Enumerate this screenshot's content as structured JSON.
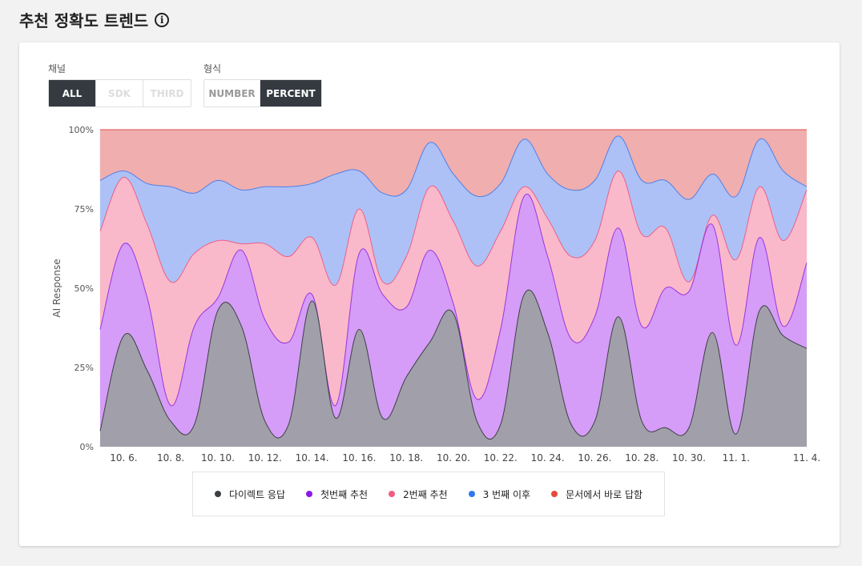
{
  "header": {
    "title": "추천 정확도 트렌드",
    "info_icon": "info-icon",
    "info_glyph": "i"
  },
  "filters": {
    "channel": {
      "label": "채널",
      "options": [
        "ALL",
        "SDK",
        "THIRD"
      ],
      "selected": "ALL"
    },
    "format": {
      "label": "형식",
      "options": [
        "NUMBER",
        "PERCENT"
      ],
      "selected": "PERCENT"
    }
  },
  "chart_data": {
    "type": "area",
    "stacked": true,
    "percent": true,
    "ylabel": "AI Response",
    "ylim": [
      0,
      100
    ],
    "yticks": [
      "0%",
      "25%",
      "50%",
      "75%",
      "100%"
    ],
    "x": [
      "10. 5.",
      "10. 6.",
      "10. 7.",
      "10. 8.",
      "10. 9.",
      "10. 10.",
      "10. 11.",
      "10. 12.",
      "10. 13.",
      "10. 14.",
      "10. 15.",
      "10. 16.",
      "10. 17.",
      "10. 18.",
      "10. 19.",
      "10. 20.",
      "10. 21.",
      "10. 22.",
      "10. 23.",
      "10. 24.",
      "10. 25.",
      "10. 26.",
      "10. 27.",
      "10. 28.",
      "10. 29.",
      "10. 30.",
      "10. 31.",
      "11. 1.",
      "11. 2.",
      "11. 3.",
      "11. 4."
    ],
    "xtick_labels": [
      "10. 6.",
      "10. 8.",
      "10. 10.",
      "10. 12.",
      "10. 14.",
      "10. 16.",
      "10. 18.",
      "10. 20.",
      "10. 22.",
      "10. 24.",
      "10. 26.",
      "10. 28.",
      "10. 30.",
      "11. 1.",
      "11. 4."
    ],
    "grid": true,
    "legend_position": "bottom",
    "series": [
      {
        "name": "다이렉트 응답",
        "color": "#9ea0a5",
        "line": "#3c3f44",
        "cumulative": [
          5,
          35,
          24,
          8,
          7,
          43,
          38,
          8,
          7,
          46,
          9,
          37,
          9,
          22,
          33,
          42,
          8,
          7,
          48,
          36,
          7,
          8,
          41,
          8,
          6,
          6,
          36,
          4,
          43,
          35,
          31
        ]
      },
      {
        "name": "첫번째 추천",
        "color": "#d39bf9",
        "line": "#9b33e0",
        "cumulative": [
          37,
          64,
          47,
          13,
          38,
          47,
          62,
          40,
          33,
          48,
          13,
          61,
          48,
          44,
          62,
          45,
          15,
          37,
          79,
          60,
          34,
          41,
          69,
          38,
          50,
          49,
          70,
          32,
          66,
          38,
          58
        ]
      },
      {
        "name": "2번째 추천",
        "color": "#fdb8c8",
        "line": "#ec5f86",
        "cumulative": [
          68,
          85,
          70,
          52,
          61,
          65,
          64,
          64,
          60,
          66,
          51,
          75,
          52,
          60,
          82,
          71,
          57,
          68,
          82,
          72,
          60,
          65,
          87,
          67,
          69,
          52,
          73,
          59,
          82,
          65,
          81
        ]
      },
      {
        "name": "3 번째 이후",
        "color": "#a9c2fb",
        "line": "#4f7fe9",
        "cumulative": [
          84,
          87,
          83,
          82,
          80,
          84,
          81,
          82,
          82,
          83,
          86,
          87,
          80,
          81,
          96,
          86,
          79,
          83,
          97,
          86,
          81,
          84,
          98,
          84,
          84,
          78,
          86,
          79,
          97,
          87,
          82
        ]
      },
      {
        "name": "문서에서 바로 답함",
        "color": "#efaaaa",
        "line": "#e04b4b",
        "cumulative": [
          100,
          100,
          100,
          100,
          100,
          100,
          100,
          100,
          100,
          100,
          100,
          100,
          100,
          100,
          100,
          100,
          100,
          100,
          100,
          100,
          100,
          100,
          100,
          100,
          100,
          100,
          100,
          100,
          100,
          100,
          100
        ]
      }
    ]
  }
}
